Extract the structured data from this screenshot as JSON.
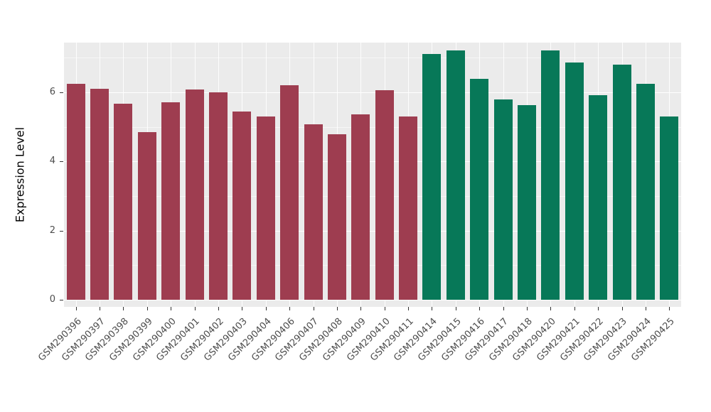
{
  "figure": {
    "background": "#FFFFFF"
  },
  "chart_data": {
    "type": "bar",
    "title": "",
    "xlabel": "",
    "ylabel": "Expression Level",
    "legend": "none",
    "grid": true,
    "panel_background": "#EBEBEB",
    "grid_color": "#FFFFFF",
    "yticks": [
      0,
      2,
      4,
      6
    ],
    "minor_ticks": [
      1,
      3,
      5,
      7
    ],
    "ylim": [
      0,
      7.64
    ],
    "categories": [
      "GSM290396",
      "GSM290397",
      "GSM290398",
      "GSM290399",
      "GSM290400",
      "GSM290401",
      "GSM290402",
      "GSM290403",
      "GSM290404",
      "GSM290406",
      "GSM290407",
      "GSM290408",
      "GSM290409",
      "GSM290410",
      "GSM290411",
      "GSM290414",
      "GSM290415",
      "GSM290416",
      "GSM290417",
      "GSM290418",
      "GSM290420",
      "GSM290421",
      "GSM290422",
      "GSM290423",
      "GSM290424",
      "GSM290425"
    ],
    "values": [
      6.25,
      6.1,
      5.67,
      4.85,
      5.7,
      6.08,
      6.0,
      5.45,
      5.3,
      6.2,
      5.08,
      4.78,
      5.35,
      6.06,
      5.3,
      7.1,
      7.2,
      6.38,
      5.8,
      5.62,
      7.2,
      6.85,
      5.92,
      6.8,
      6.25,
      5.3
    ],
    "groups": [
      "group1",
      "group1",
      "group1",
      "group1",
      "group1",
      "group1",
      "group1",
      "group1",
      "group1",
      "group1",
      "group1",
      "group1",
      "group1",
      "group1",
      "group1",
      "group2",
      "group2",
      "group2",
      "group2",
      "group2",
      "group2",
      "group2",
      "group2",
      "group2",
      "group2",
      "group2"
    ],
    "colors": {
      "group1": "#9E3D50",
      "group2": "#077858"
    }
  }
}
